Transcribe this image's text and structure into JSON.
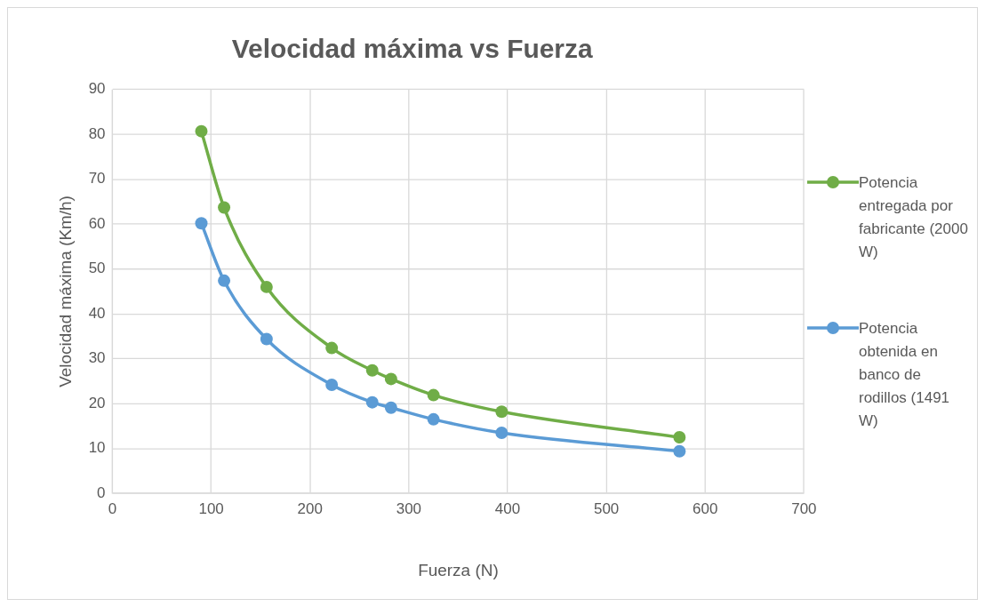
{
  "chart_data": {
    "type": "line",
    "title": "Velocidad máxima vs Fuerza",
    "xlabel": "Fuerza (N)",
    "ylabel": "Velocidad máxima (Km/h)",
    "xlim": [
      0,
      700
    ],
    "xticks": [
      0,
      100,
      200,
      300,
      400,
      500,
      600,
      700
    ],
    "ylim": [
      0,
      90
    ],
    "yticks": [
      0,
      10,
      20,
      30,
      40,
      50,
      60,
      70,
      80,
      90
    ],
    "x": [
      90,
      113,
      156,
      222,
      263,
      282,
      325,
      394,
      574
    ],
    "series": [
      {
        "name": "Potencia entregada por fabricante (2000 W)",
        "color": "#70ad47",
        "values": [
          80.7,
          63.7,
          46,
          32.4,
          27.4,
          25.5,
          21.9,
          18.2,
          12.5
        ]
      },
      {
        "name": "Potencia obtenida en banco de rodillos (1491 W)",
        "color": "#5b9bd5",
        "values": [
          60.2,
          47.4,
          34.4,
          24.2,
          20.3,
          19.1,
          16.5,
          13.5,
          9.4
        ]
      }
    ],
    "grid": true,
    "legend": "right",
    "marker": "circle",
    "line_style": "solid"
  }
}
